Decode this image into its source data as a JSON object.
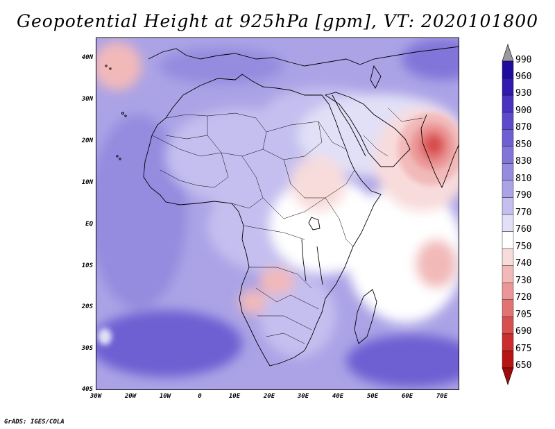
{
  "title": "Geopotential Height at 925hPa [gpm], VT: 2020101800",
  "credit": "GrADS: IGES/COLA",
  "map": {
    "lat_labels": [
      "40N",
      "30N",
      "20N",
      "10N",
      "EQ",
      "10S",
      "20S",
      "30S",
      "40S"
    ],
    "lon_labels": [
      "30W",
      "20W",
      "10W",
      "0",
      "10E",
      "20E",
      "30E",
      "40E",
      "50E",
      "60E",
      "70E"
    ],
    "lon_range": [
      -30,
      75
    ],
    "lat_range": [
      -40,
      45
    ]
  },
  "colorbar": {
    "levels": [
      "990",
      "960",
      "930",
      "900",
      "870",
      "850",
      "830",
      "810",
      "790",
      "770",
      "760",
      "750",
      "740",
      "730",
      "720",
      "705",
      "690",
      "675",
      "650"
    ],
    "colors": [
      "#9a9a9a",
      "#1e0c9e",
      "#3219b0",
      "#4a33c0",
      "#5d49cb",
      "#6e5fd2",
      "#8175d9",
      "#958bdf",
      "#aba3e6",
      "#c4bfef",
      "#e1e0f7",
      "#ffffff",
      "#f8dcdc",
      "#f2b9b9",
      "#eb9797",
      "#e27373",
      "#d84f4f",
      "#cc2d2d",
      "#b71414",
      "#a10a0a"
    ]
  }
}
